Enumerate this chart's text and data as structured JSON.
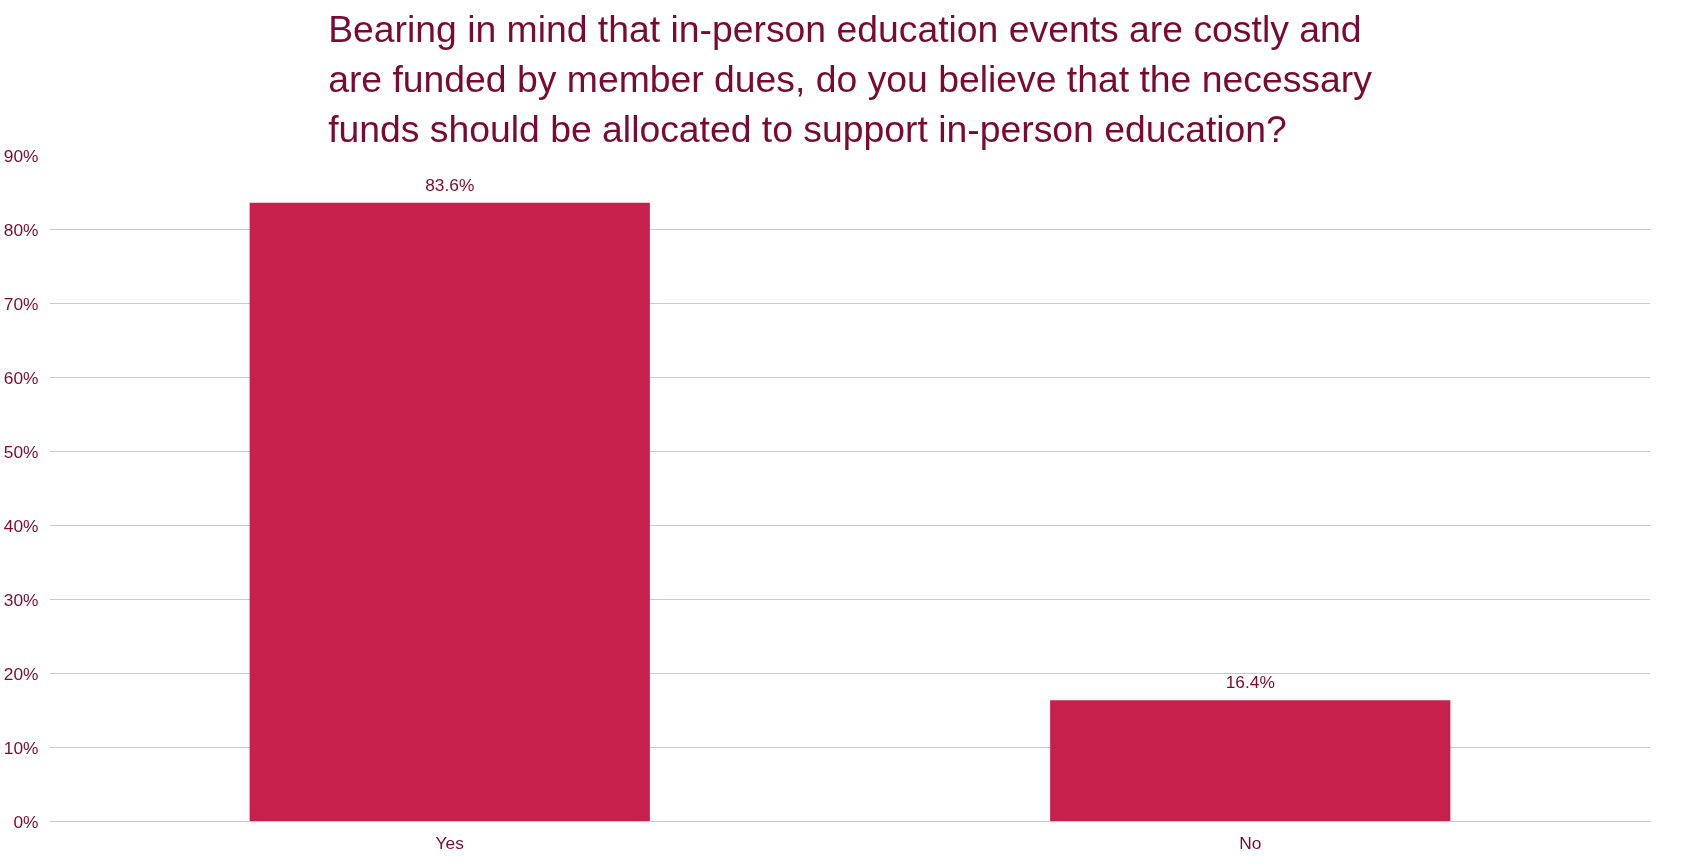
{
  "chart_data": {
    "type": "bar",
    "title": "Bearing in mind that in-person education events are costly and are funded by member dues, do you believe that the necessary funds should be allocated to support in-person education?",
    "categories": [
      "Yes",
      "No"
    ],
    "values": [
      83.6,
      16.4
    ],
    "value_labels": [
      "83.6%",
      "16.4%"
    ],
    "color": "#c8204d",
    "ylim": [
      0,
      90
    ],
    "yticks": [
      {
        "value": 0,
        "label": "0%"
      },
      {
        "value": 10,
        "label": "10%"
      },
      {
        "value": 20,
        "label": "20%"
      },
      {
        "value": 30,
        "label": "30%"
      },
      {
        "value": 40,
        "label": "40%"
      },
      {
        "value": 50,
        "label": "50%"
      },
      {
        "value": 60,
        "label": "60%"
      },
      {
        "value": 70,
        "label": "70%"
      },
      {
        "value": 80,
        "label": "80%"
      },
      {
        "value": 90,
        "label": "90%"
      }
    ],
    "grid": "y"
  }
}
